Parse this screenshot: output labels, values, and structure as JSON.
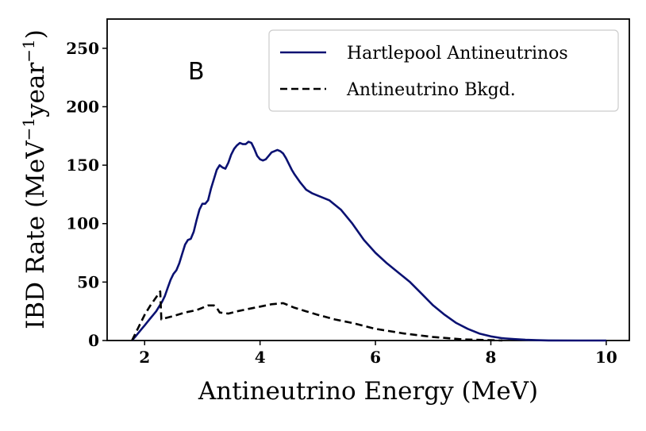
{
  "chart_data": {
    "type": "line",
    "panel_label": "B",
    "xlabel": "Antineutrino Energy (MeV)",
    "ylabel": {
      "base": "IBD Rate (MeV",
      "sup1": "−1",
      "mid": "year",
      "sup2": "−1",
      "end": ")"
    },
    "xlim": [
      1.35,
      10.4
    ],
    "ylim": [
      0,
      275
    ],
    "xticks": [
      2,
      4,
      6,
      8,
      10
    ],
    "yticks": [
      0,
      50,
      100,
      150,
      200,
      250
    ],
    "legend_position": "top-right",
    "series": [
      {
        "name": "Hartlepool Antineutrinos",
        "style": "solid",
        "color": "#0a1172",
        "x": [
          1.78,
          1.85,
          1.9,
          1.95,
          2.0,
          2.05,
          2.1,
          2.15,
          2.2,
          2.25,
          2.3,
          2.35,
          2.4,
          2.45,
          2.5,
          2.55,
          2.6,
          2.65,
          2.7,
          2.75,
          2.8,
          2.85,
          2.9,
          2.95,
          3.0,
          3.05,
          3.1,
          3.15,
          3.2,
          3.25,
          3.3,
          3.35,
          3.4,
          3.45,
          3.5,
          3.55,
          3.6,
          3.65,
          3.7,
          3.75,
          3.8,
          3.85,
          3.9,
          3.95,
          4.0,
          4.05,
          4.1,
          4.15,
          4.2,
          4.25,
          4.3,
          4.35,
          4.4,
          4.45,
          4.5,
          4.55,
          4.6,
          4.7,
          4.8,
          4.9,
          5.0,
          5.2,
          5.4,
          5.6,
          5.8,
          6.0,
          6.2,
          6.4,
          6.6,
          6.8,
          7.0,
          7.2,
          7.4,
          7.6,
          7.8,
          8.0,
          8.2,
          8.4,
          8.6,
          8.8,
          9.0,
          9.5,
          10.0
        ],
        "y": [
          0,
          4,
          7,
          10,
          13,
          16,
          19,
          22,
          25,
          29,
          33,
          38,
          45,
          52,
          57,
          60,
          66,
          74,
          82,
          86,
          87,
          93,
          103,
          112,
          117,
          117,
          120,
          130,
          138,
          146,
          150,
          148,
          147,
          152,
          159,
          164,
          167,
          169,
          168,
          168,
          170,
          169,
          164,
          158,
          155,
          154,
          155,
          158,
          161,
          162,
          163,
          162,
          160,
          156,
          151,
          146,
          142,
          135,
          129,
          126,
          124,
          120,
          112,
          100,
          86,
          75,
          66,
          58,
          50,
          40,
          30,
          22,
          15,
          10,
          6,
          3.5,
          2,
          1.2,
          0.6,
          0.3,
          0.1,
          0,
          0
        ]
      },
      {
        "name": "Antineutrino Bkgd.",
        "style": "dashed",
        "color": "#000000",
        "x": [
          1.78,
          1.9,
          2.0,
          2.1,
          2.2,
          2.27,
          2.29,
          2.35,
          2.5,
          2.7,
          2.9,
          3.0,
          3.1,
          3.2,
          3.25,
          3.3,
          3.45,
          3.6,
          3.8,
          4.0,
          4.2,
          4.4,
          4.5,
          4.6,
          4.8,
          5.0,
          5.3,
          5.6,
          6.0,
          6.5,
          7.0,
          7.5,
          8.0,
          8.2
        ],
        "y": [
          0,
          12,
          22,
          30,
          37,
          42,
          18,
          19,
          21,
          24,
          26,
          28,
          30,
          30,
          28,
          24,
          23,
          25,
          27,
          29,
          31,
          32,
          30,
          28,
          25,
          22,
          18,
          15,
          10,
          6,
          3,
          1,
          0.3,
          0
        ]
      }
    ]
  }
}
